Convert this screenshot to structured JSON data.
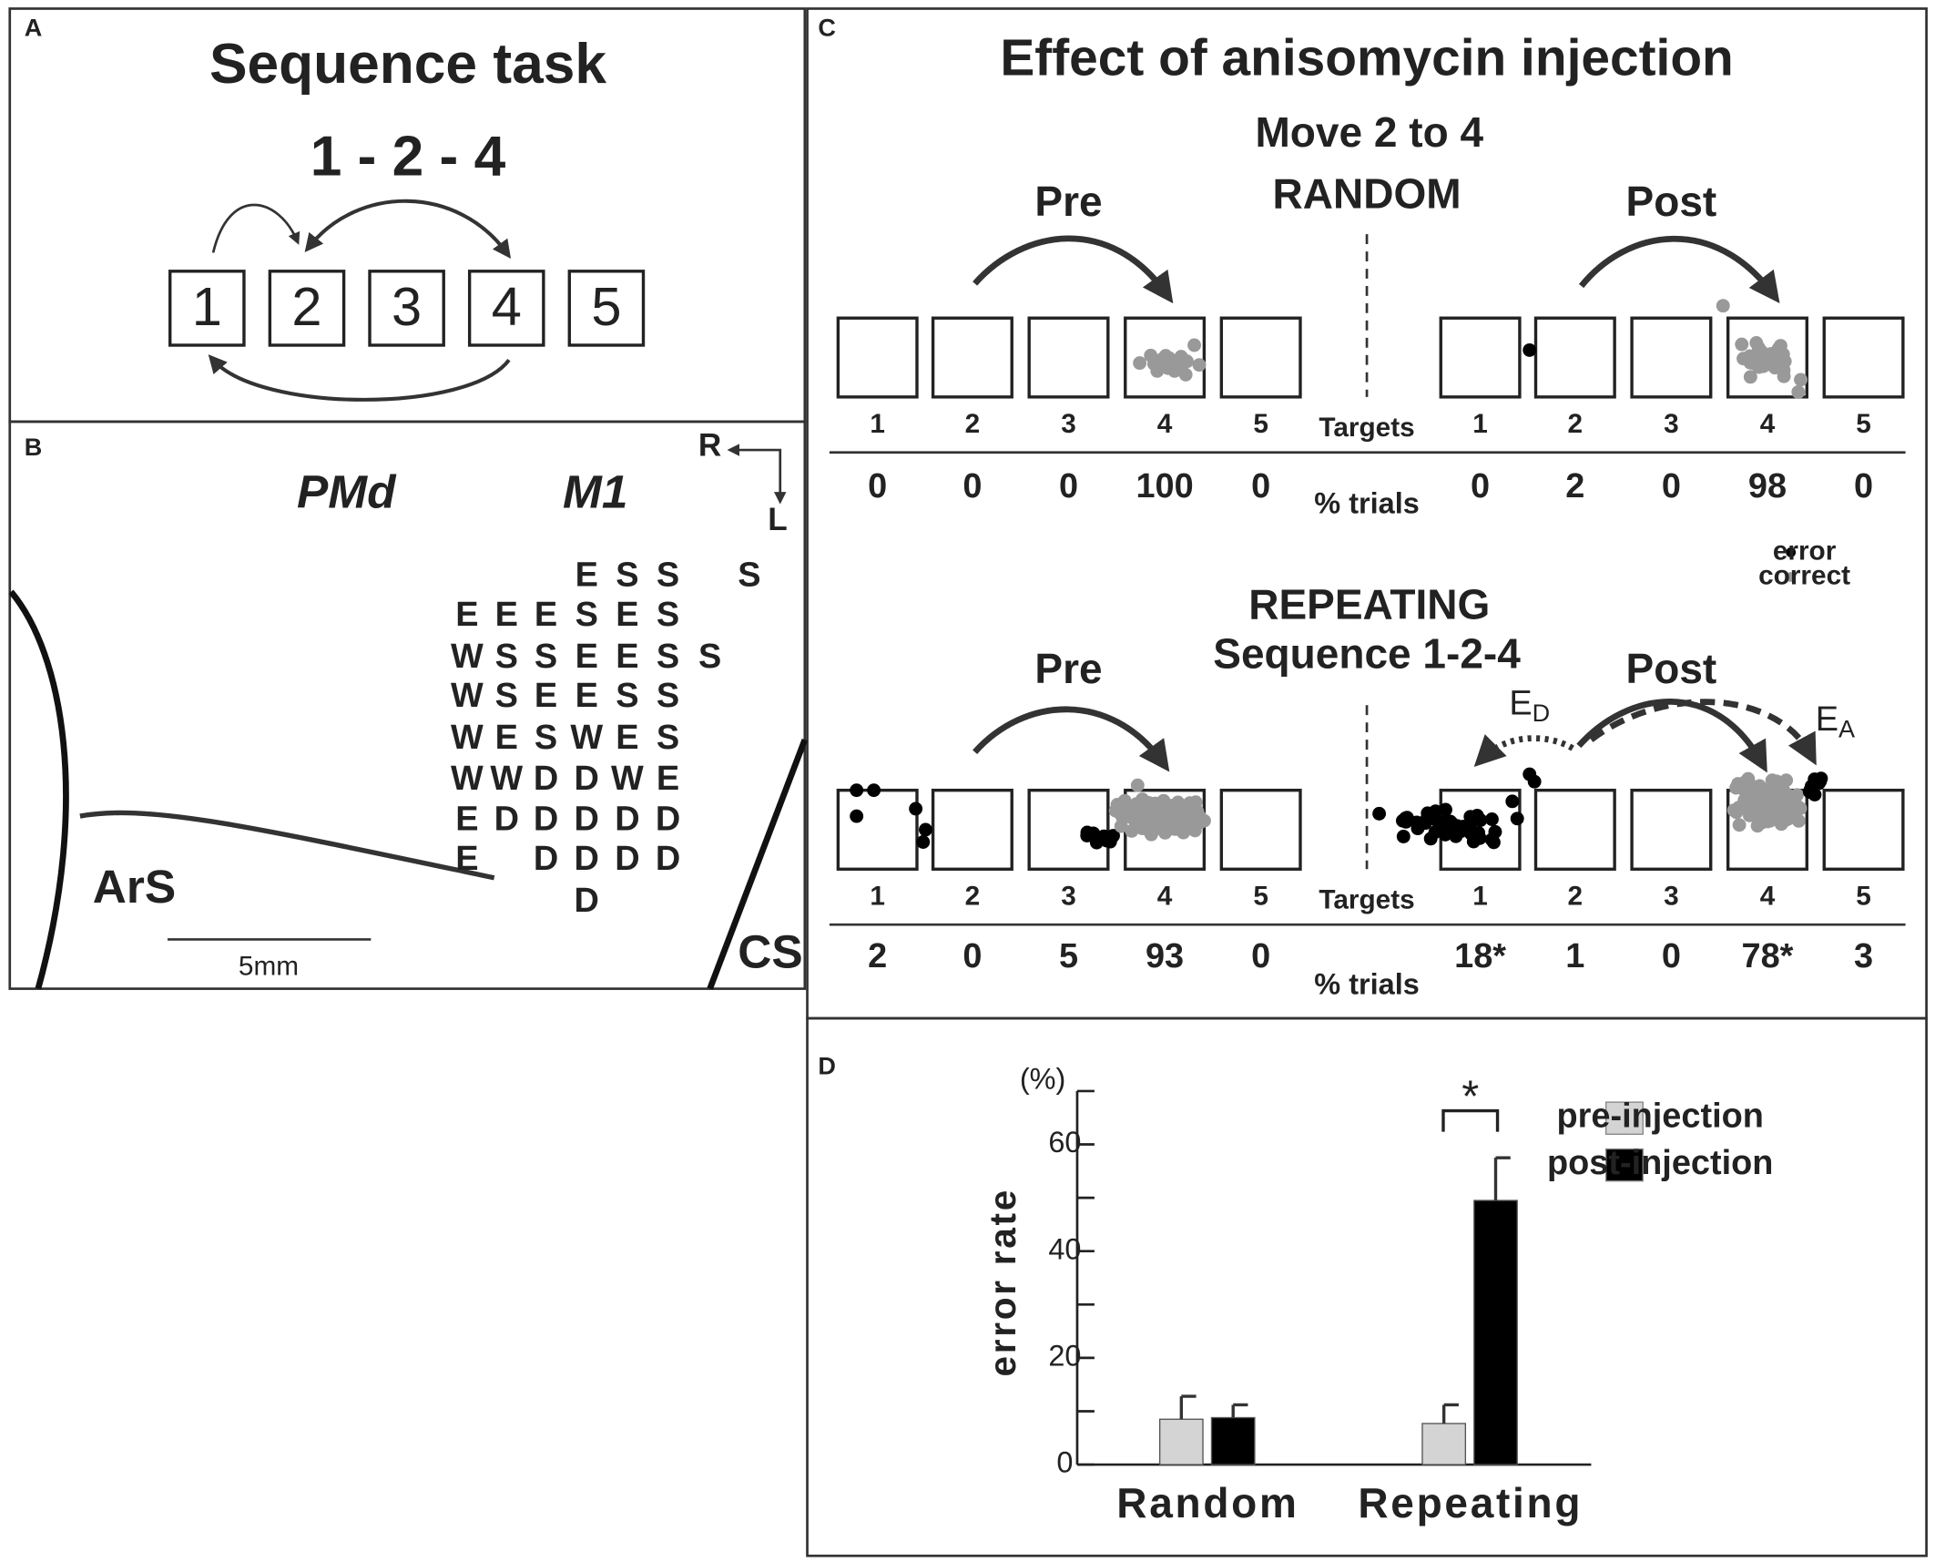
{
  "panel_a": {
    "label": "A",
    "title": "Sequence task",
    "sequence": "1 - 2 - 4",
    "boxes": [
      "1",
      "2",
      "3",
      "4",
      "5"
    ]
  },
  "panel_b": {
    "label": "B",
    "areas": [
      "PMd",
      "M1"
    ],
    "compass": [
      "R",
      "L"
    ],
    "sulci": [
      "ArS",
      "CS"
    ],
    "scale": "5mm",
    "grid": [
      [
        null,
        null,
        null,
        "E",
        "S",
        "S",
        null,
        "S"
      ],
      [
        "E",
        "E",
        "E",
        "S",
        "E",
        "S"
      ],
      [
        "W",
        "S",
        "S",
        "E",
        "E",
        "S",
        "S"
      ],
      [
        "W",
        "S",
        "E",
        "E",
        "S",
        "S"
      ],
      [
        "W",
        "E",
        "S",
        "W",
        "E",
        "S"
      ],
      [
        "W",
        "W",
        "D",
        "D",
        "W",
        "E"
      ],
      [
        "E",
        "D",
        "D",
        "D",
        "D",
        "D"
      ],
      [
        "E",
        null,
        "D",
        "D",
        "D",
        "D"
      ],
      [
        null,
        null,
        null,
        "D"
      ]
    ]
  },
  "panel_c": {
    "label": "C",
    "title": "Effect of anisomycin injection",
    "targets": [
      "1",
      "2",
      "3",
      "4",
      "5"
    ],
    "targets_label": "Targets",
    "percent_label": "% trials",
    "legend": [
      "error",
      "correct"
    ],
    "random": {
      "heading": [
        "Move 2 to 4",
        "RANDOM"
      ],
      "pre": {
        "label": "Pre",
        "percent": [
          "0",
          "0",
          "0",
          "100",
          "0"
        ]
      },
      "post": {
        "label": "Post",
        "percent": [
          "0",
          "2",
          "0",
          "98",
          "0"
        ]
      }
    },
    "repeating": {
      "heading": [
        "REPEATING",
        "Sequence 1-2-4"
      ],
      "pre": {
        "label": "Pre",
        "percent": [
          "2",
          "0",
          "5",
          "93",
          "0"
        ]
      },
      "post": {
        "label": "Post",
        "percent": [
          "18*",
          "1",
          "0",
          "78*",
          "3"
        ]
      }
    },
    "error_d": {
      "main": "E",
      "sub": "D"
    },
    "error_a": {
      "main": "E",
      "sub": "A"
    }
  },
  "chart_data": {
    "type": "bar",
    "label": "D",
    "ylabel": "error rate",
    "y_unit": "(%)",
    "significance": "*",
    "categories": [
      "Random",
      "Repeating"
    ],
    "series": [
      {
        "name": "pre-injection",
        "color": "#d4d4d4",
        "values": [
          8.5,
          7.7
        ],
        "errors": [
          4.3,
          3.5
        ]
      },
      {
        "name": "post-injection",
        "color": "#000000",
        "values": [
          8.8,
          49.5
        ],
        "errors": [
          2.4,
          8
        ]
      }
    ],
    "ylim": [
      0,
      70
    ],
    "yticks": [
      0,
      20,
      40,
      60
    ],
    "yminor_ticks": [
      10,
      30,
      50,
      70
    ],
    "legend": "upper right"
  }
}
